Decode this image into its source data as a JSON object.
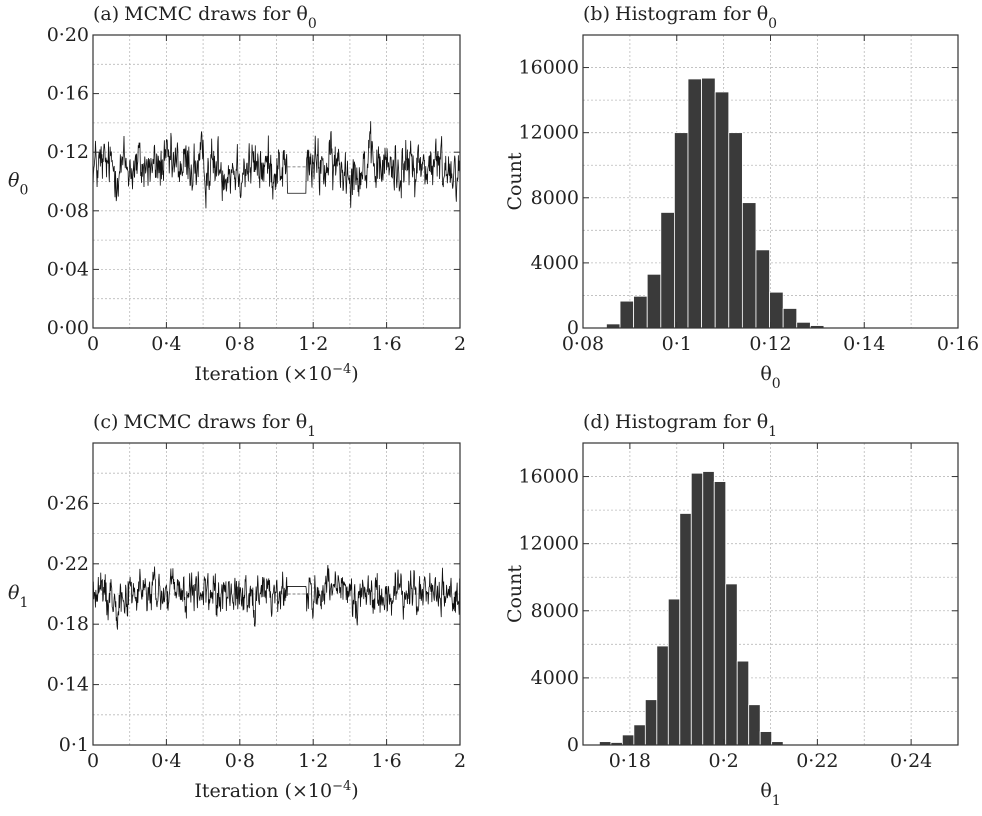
{
  "chart_data": [
    {
      "id": "a",
      "type": "line",
      "title_prefix": "(a)",
      "title_text": "MCMC draws for θ",
      "title_sub": "0",
      "xlabel": "Iteration (×10",
      "xlabel_sup": "−4",
      "xlabel_end": ")",
      "ylabel": "θ",
      "ylabel_sub": "0",
      "xlim": [
        0,
        2
      ],
      "ylim": [
        0,
        0.2
      ],
      "xticks": [
        0,
        0.4,
        0.8,
        1.2,
        1.6,
        2
      ],
      "xtick_labels": [
        "0",
        "0·4",
        "0·8",
        "1·2",
        "1·6",
        "2"
      ],
      "yticks": [
        0,
        0.04,
        0.08,
        0.12,
        0.16,
        0.2
      ],
      "ytick_labels": [
        "0·00",
        "0·04",
        "0·08",
        "0·12",
        "0·16",
        "0·20"
      ],
      "grid": true,
      "trace": {
        "mean": 0.11,
        "spread": 0.008,
        "flat_segment": {
          "x": [
            1.06,
            1.16
          ],
          "y": 0.092
        }
      }
    },
    {
      "id": "b",
      "type": "bar",
      "title_prefix": "(b)",
      "title_text": "Histogram for θ",
      "title_sub": "0",
      "xlabel": "θ",
      "xlabel_sub": "0",
      "ylabel": "Count",
      "xlim": [
        0.08,
        0.16
      ],
      "ylim": [
        0,
        18000
      ],
      "xticks": [
        0.08,
        0.1,
        0.12,
        0.14,
        0.16
      ],
      "xtick_labels": [
        "0·08",
        "0·1",
        "0·12",
        "0·14",
        "0·16"
      ],
      "yticks": [
        0,
        4000,
        8000,
        12000,
        16000
      ],
      "ytick_labels": [
        "0",
        "4000",
        "8000",
        "12000",
        "16000"
      ],
      "grid": true,
      "bin_start": 0.085,
      "bin_width": 0.0029,
      "values": [
        250,
        1650,
        1950,
        3300,
        7100,
        12000,
        15300,
        15350,
        14500,
        12000,
        7700,
        4800,
        2200,
        1200,
        350,
        150
      ]
    },
    {
      "id": "c",
      "type": "line",
      "title_prefix": "(c)",
      "title_text": "MCMC draws for θ",
      "title_sub": "1",
      "xlabel": "Iteration (×10",
      "xlabel_sup": "−4",
      "xlabel_end": ")",
      "ylabel": "θ",
      "ylabel_sub": "1",
      "xlim": [
        0,
        2
      ],
      "ylim": [
        0.1,
        0.3
      ],
      "xticks": [
        0,
        0.4,
        0.8,
        1.2,
        1.6,
        2
      ],
      "xtick_labels": [
        "0",
        "0·4",
        "0·8",
        "1·2",
        "1·6",
        "2"
      ],
      "yticks": [
        0.1,
        0.14,
        0.18,
        0.22,
        0.26
      ],
      "ytick_labels": [
        "0·1",
        "0·14",
        "0·18",
        "0·22",
        "0·26"
      ],
      "grid": true,
      "trace": {
        "mean": 0.2,
        "spread": 0.0065,
        "flat_segment": {
          "x": [
            1.06,
            1.16
          ],
          "y": 0.205
        }
      }
    },
    {
      "id": "d",
      "type": "bar",
      "title_prefix": "(d)",
      "title_text": "Histogram for θ",
      "title_sub": "1",
      "xlabel": "θ",
      "xlabel_sub": "1",
      "ylabel": "Count",
      "xlim": [
        0.17,
        0.25
      ],
      "ylim": [
        0,
        18000
      ],
      "xticks": [
        0.18,
        0.2,
        0.22,
        0.24
      ],
      "xtick_labels": [
        "0·18",
        "0·2",
        "0·22",
        "0·24"
      ],
      "yticks": [
        0,
        4000,
        8000,
        12000,
        16000
      ],
      "ytick_labels": [
        "0",
        "4000",
        "8000",
        "12000",
        "16000"
      ],
      "grid": true,
      "bin_start": 0.1735,
      "bin_width": 0.00245,
      "values": [
        200,
        150,
        600,
        1200,
        2700,
        5900,
        8700,
        13800,
        16200,
        16300,
        15700,
        9600,
        5000,
        2400,
        800,
        200
      ]
    }
  ]
}
